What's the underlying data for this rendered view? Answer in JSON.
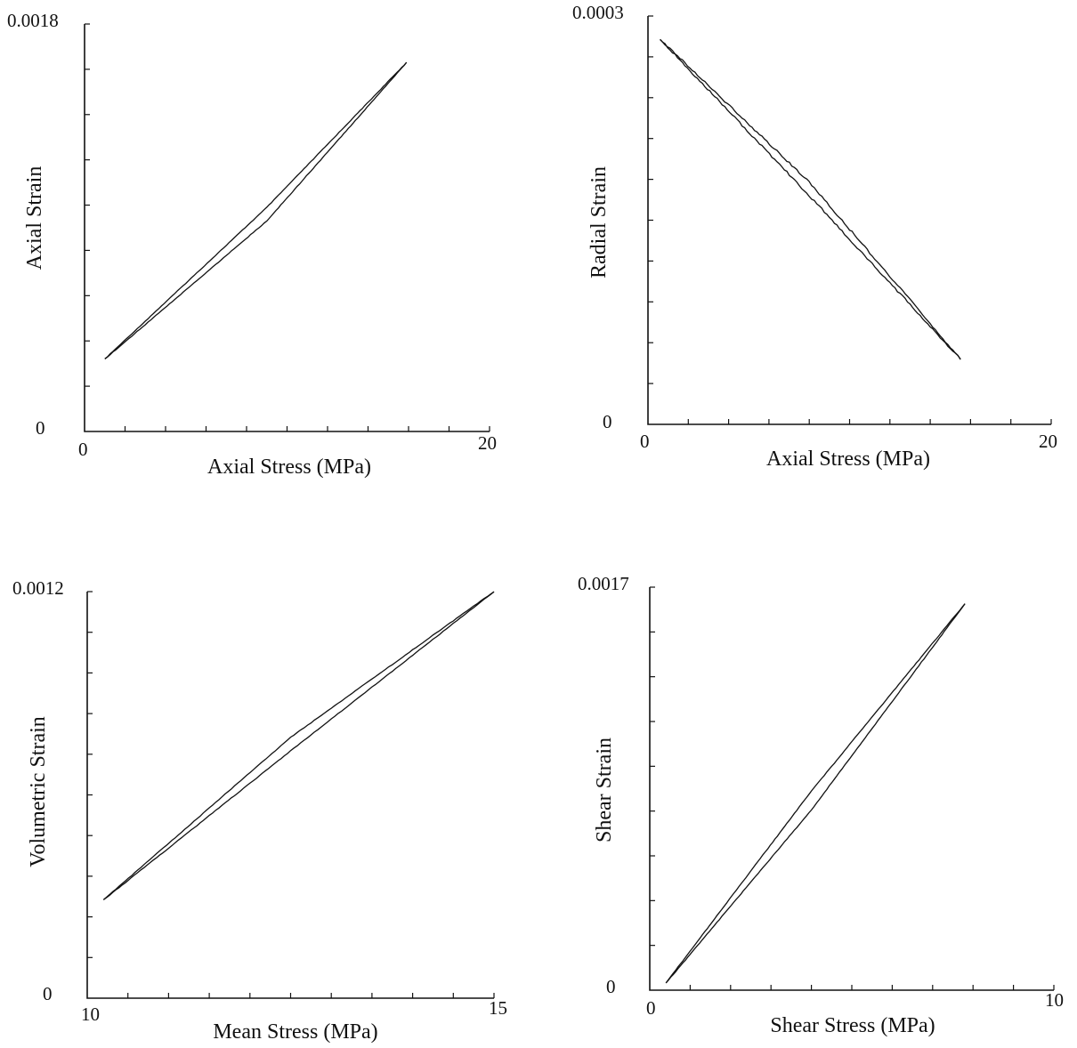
{
  "chart_data": [
    {
      "type": "line",
      "xlabel": "Axial Stress (MPa)",
      "ylabel": "Axial Strain",
      "xlim": [
        0,
        20
      ],
      "ylim": [
        0,
        0.0018
      ],
      "x_tick_labels": [
        "0",
        "20"
      ],
      "y_tick_labels": [
        "0",
        "0.0018"
      ],
      "x_minor_ticks": 10,
      "y_minor_ticks": 9,
      "series": [
        {
          "x": [
            1.0,
            9.0,
            15.9
          ],
          "y": [
            0.00032,
            0.00099,
            0.00163
          ]
        },
        {
          "x": [
            15.9,
            9.0,
            1.0
          ],
          "y": [
            0.00163,
            0.00093,
            0.00032
          ]
        }
      ]
    },
    {
      "type": "line",
      "xlabel": "Axial Stress (MPa)",
      "ylabel": "Radial Strain",
      "xlim": [
        0,
        20
      ],
      "ylim": [
        0,
        0.0003
      ],
      "x_tick_labels": [
        "0",
        "20"
      ],
      "y_tick_labels": [
        "0",
        "0.0003"
      ],
      "x_minor_ticks": 10,
      "y_minor_ticks": 10,
      "series": [
        {
          "x": [
            0.6,
            8.0,
            15.5
          ],
          "y": [
            0.000283,
            0.000178,
            4.8e-05
          ]
        },
        {
          "x": [
            15.5,
            8.0,
            0.6
          ],
          "y": [
            4.8e-05,
            0.000168,
            0.000283
          ]
        }
      ]
    },
    {
      "type": "line",
      "xlabel": "Mean Stress (MPa)",
      "ylabel": "Volumetric Strain",
      "xlim": [
        10,
        15
      ],
      "ylim": [
        0,
        0.0012
      ],
      "x_tick_labels": [
        "10",
        "15"
      ],
      "y_tick_labels": [
        "0",
        "0.0012"
      ],
      "x_minor_ticks": 10,
      "y_minor_ticks": 10,
      "series": [
        {
          "x": [
            10.2,
            12.5,
            15.0
          ],
          "y": [
            0.00029,
            0.00077,
            0.0012
          ]
        },
        {
          "x": [
            15.0,
            12.5,
            10.2
          ],
          "y": [
            0.0012,
            0.00073,
            0.00029
          ]
        }
      ]
    },
    {
      "type": "line",
      "xlabel": "Shear Stress (MPa)",
      "ylabel": "Shear Strain",
      "xlim": [
        0,
        10
      ],
      "ylim": [
        0,
        0.0017
      ],
      "x_tick_labels": [
        "0",
        "10"
      ],
      "y_tick_labels": [
        "0",
        "0.0017"
      ],
      "x_minor_ticks": 10,
      "y_minor_ticks": 9,
      "series": [
        {
          "x": [
            0.4,
            4.0,
            7.8
          ],
          "y": [
            3e-05,
            0.00084,
            0.00163
          ]
        },
        {
          "x": [
            7.8,
            4.0,
            0.4
          ],
          "y": [
            0.00163,
            0.00076,
            3e-05
          ]
        }
      ]
    }
  ]
}
